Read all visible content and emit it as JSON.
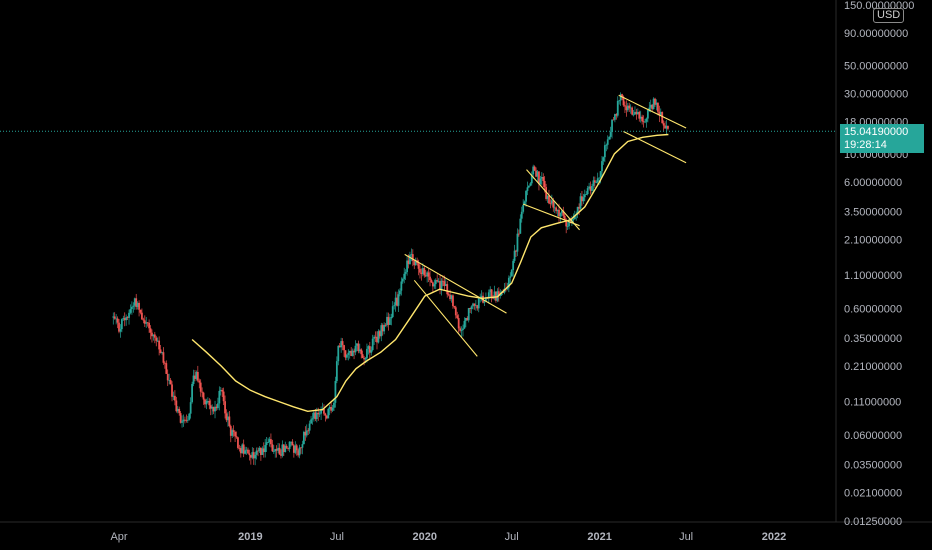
{
  "currency": "USD",
  "last_price": {
    "value": "15.04190000",
    "countdown": "19:28:14",
    "y_value": 15.0419
  },
  "colors": {
    "background": "#000000",
    "up": "#26a69a",
    "down": "#ef5350",
    "moving_average": "#ffe66d",
    "trendlines": "#ffe66d",
    "price_tag": "#26a69a"
  },
  "chart_data": {
    "type": "candlestick",
    "y_scale": "log",
    "ylim": [
      0.0125,
      150
    ],
    "xlim": [
      "2018-03-01",
      "2022-07-01"
    ],
    "y_ticks": [
      "150.00000000",
      "90.00000000",
      "50.00000000",
      "30.00000000",
      "18.00000000",
      "10.00000000",
      "6.00000000",
      "3.50000000",
      "2.10000000",
      "1.10000000",
      "0.60000000",
      "0.35000000",
      "0.21000000",
      "0.11000000",
      "0.06000000",
      "0.03500000",
      "0.02100000",
      "0.01250000"
    ],
    "y_tick_values": [
      150,
      90,
      50,
      30,
      18,
      10,
      6,
      3.5,
      2.1,
      1.1,
      0.6,
      0.35,
      0.21,
      0.11,
      0.06,
      0.035,
      0.021,
      0.0125
    ],
    "x_ticks": [
      {
        "label": "Apr",
        "date": "2018-04-01",
        "bold": false
      },
      {
        "label": "2019",
        "date": "2019-01-01",
        "bold": true
      },
      {
        "label": "Jul",
        "date": "2019-07-01",
        "bold": false
      },
      {
        "label": "2020",
        "date": "2020-01-01",
        "bold": true
      },
      {
        "label": "Jul",
        "date": "2020-07-01",
        "bold": false
      },
      {
        "label": "2021",
        "date": "2021-01-01",
        "bold": true
      },
      {
        "label": "Jul",
        "date": "2021-07-01",
        "bold": false
      },
      {
        "label": "2022",
        "date": "2022-01-01",
        "bold": true
      }
    ],
    "price_path": [
      [
        "2018-03-20",
        0.5
      ],
      [
        "2018-04-01",
        0.42
      ],
      [
        "2018-04-20",
        0.55
      ],
      [
        "2018-05-05",
        0.7
      ],
      [
        "2018-05-20",
        0.52
      ],
      [
        "2018-06-10",
        0.38
      ],
      [
        "2018-07-01",
        0.24
      ],
      [
        "2018-07-20",
        0.13
      ],
      [
        "2018-08-10",
        0.075
      ],
      [
        "2018-08-25",
        0.09
      ],
      [
        "2018-09-05",
        0.19
      ],
      [
        "2018-09-25",
        0.12
      ],
      [
        "2018-10-15",
        0.095
      ],
      [
        "2018-11-01",
        0.13
      ],
      [
        "2018-11-20",
        0.065
      ],
      [
        "2018-12-10",
        0.048
      ],
      [
        "2019-01-01",
        0.04
      ],
      [
        "2019-01-20",
        0.045
      ],
      [
        "2019-02-10",
        0.052
      ],
      [
        "2019-03-01",
        0.044
      ],
      [
        "2019-03-20",
        0.05
      ],
      [
        "2019-04-10",
        0.045
      ],
      [
        "2019-05-01",
        0.07
      ],
      [
        "2019-05-20",
        0.09
      ],
      [
        "2019-06-10",
        0.085
      ],
      [
        "2019-06-25",
        0.11
      ],
      [
        "2019-07-05",
        0.32
      ],
      [
        "2019-07-20",
        0.26
      ],
      [
        "2019-08-10",
        0.3
      ],
      [
        "2019-08-25",
        0.24
      ],
      [
        "2019-09-10",
        0.3
      ],
      [
        "2019-10-01",
        0.4
      ],
      [
        "2019-10-20",
        0.5
      ],
      [
        "2019-11-10",
        0.8
      ],
      [
        "2019-12-01",
        1.6
      ],
      [
        "2019-12-20",
        1.3
      ],
      [
        "2020-01-10",
        1.0
      ],
      [
        "2020-02-01",
        0.95
      ],
      [
        "2020-02-20",
        0.85
      ],
      [
        "2020-03-15",
        0.4
      ],
      [
        "2020-04-01",
        0.55
      ],
      [
        "2020-04-20",
        0.65
      ],
      [
        "2020-05-10",
        0.8
      ],
      [
        "2020-06-01",
        0.75
      ],
      [
        "2020-06-20",
        0.85
      ],
      [
        "2020-07-10",
        1.8
      ],
      [
        "2020-07-25",
        4.0
      ],
      [
        "2020-08-15",
        7.5
      ],
      [
        "2020-09-01",
        6.0
      ],
      [
        "2020-09-20",
        4.0
      ],
      [
        "2020-10-15",
        3.2
      ],
      [
        "2020-11-01",
        2.7
      ],
      [
        "2020-11-20",
        4.2
      ],
      [
        "2020-12-10",
        5.0
      ],
      [
        "2021-01-01",
        7.0
      ],
      [
        "2021-01-15",
        12.0
      ],
      [
        "2021-02-01",
        20.0
      ],
      [
        "2021-02-15",
        28.0
      ],
      [
        "2021-03-01",
        22.0
      ],
      [
        "2021-03-20",
        20.0
      ],
      [
        "2021-04-05",
        18.0
      ],
      [
        "2021-04-25",
        25.0
      ],
      [
        "2021-05-10",
        20.0
      ],
      [
        "2021-05-25",
        15.04
      ]
    ],
    "moving_average": [
      [
        "2018-09-01",
        0.34
      ],
      [
        "2018-10-01",
        0.27
      ],
      [
        "2018-11-01",
        0.21
      ],
      [
        "2018-12-01",
        0.16
      ],
      [
        "2019-01-01",
        0.135
      ],
      [
        "2019-02-01",
        0.12
      ],
      [
        "2019-03-01",
        0.11
      ],
      [
        "2019-04-01",
        0.1
      ],
      [
        "2019-05-01",
        0.092
      ],
      [
        "2019-06-01",
        0.095
      ],
      [
        "2019-07-01",
        0.12
      ],
      [
        "2019-07-20",
        0.16
      ],
      [
        "2019-08-10",
        0.2
      ],
      [
        "2019-09-01",
        0.23
      ],
      [
        "2019-10-01",
        0.27
      ],
      [
        "2019-11-01",
        0.34
      ],
      [
        "2019-12-01",
        0.5
      ],
      [
        "2020-01-01",
        0.75
      ],
      [
        "2020-02-01",
        0.85
      ],
      [
        "2020-03-01",
        0.8
      ],
      [
        "2020-04-01",
        0.75
      ],
      [
        "2020-05-01",
        0.72
      ],
      [
        "2020-06-01",
        0.74
      ],
      [
        "2020-07-01",
        0.95
      ],
      [
        "2020-07-20",
        1.4
      ],
      [
        "2020-08-10",
        2.2
      ],
      [
        "2020-09-01",
        2.6
      ],
      [
        "2020-10-01",
        2.8
      ],
      [
        "2020-11-01",
        3.0
      ],
      [
        "2020-12-01",
        3.8
      ],
      [
        "2021-01-01",
        6.0
      ],
      [
        "2021-02-01",
        10.0
      ],
      [
        "2021-03-01",
        12.5
      ],
      [
        "2021-04-01",
        13.5
      ],
      [
        "2021-05-01",
        14.0
      ],
      [
        "2021-05-25",
        14.2
      ]
    ],
    "trendlines": [
      {
        "from": [
          "2019-11-20",
          1.6
        ],
        "to": [
          "2020-06-20",
          0.55
        ]
      },
      {
        "from": [
          "2019-12-10",
          1.0
        ],
        "to": [
          "2020-04-20",
          0.25
        ]
      },
      {
        "from": [
          "2020-08-01",
          7.5
        ],
        "to": [
          "2020-11-20",
          2.5
        ]
      },
      {
        "from": [
          "2020-07-25",
          4.0
        ],
        "to": [
          "2020-11-20",
          2.7
        ]
      },
      {
        "from": [
          "2021-02-10",
          29.0
        ],
        "to": [
          "2021-07-01",
          16.0
        ]
      },
      {
        "from": [
          "2021-02-20",
          15.0
        ],
        "to": [
          "2021-07-01",
          8.5
        ]
      }
    ]
  }
}
